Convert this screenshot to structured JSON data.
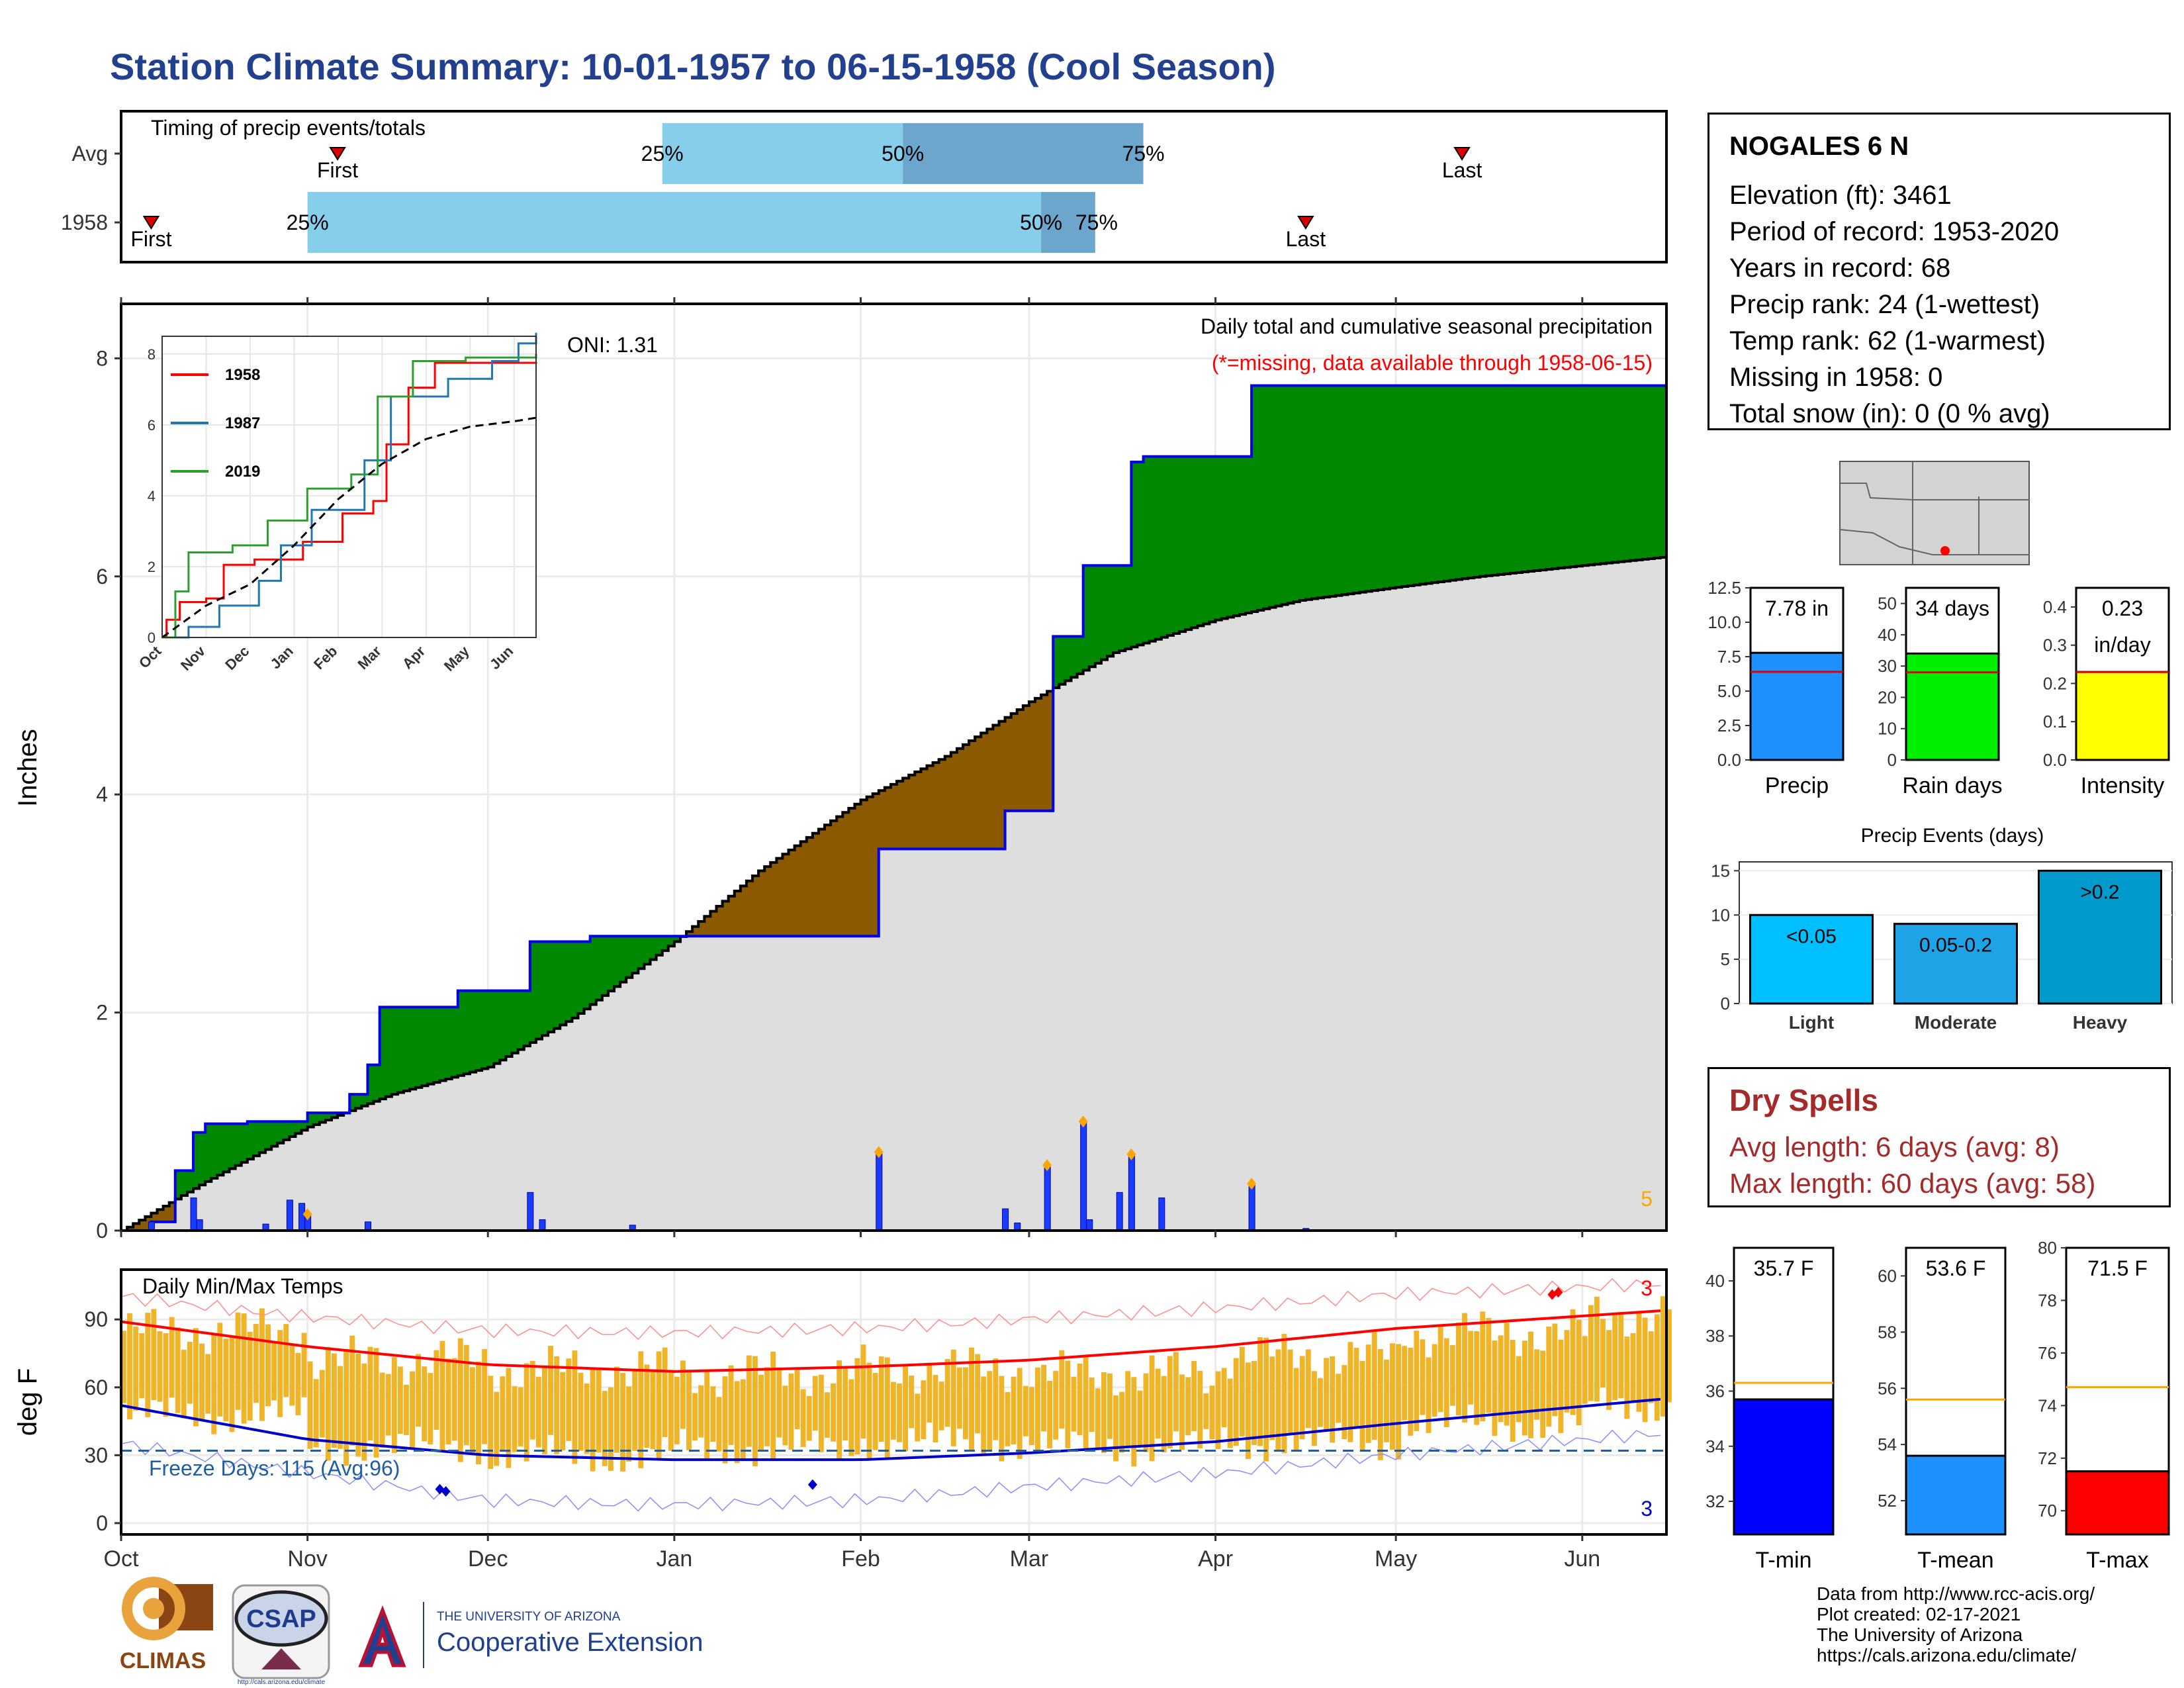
{
  "page": {
    "title": "Station Climate Summary: 10-01-1957 to 06-15-1958 (Cool Season)"
  },
  "station": {
    "name": "NOGALES 6 N",
    "lines": [
      "Elevation (ft): 3461",
      "Period of record: 1953-2020",
      "Years in record: 68",
      "Precip rank: 24 (1-wettest)",
      "Temp rank: 62 (1-warmest)",
      "Missing in 1958: 0",
      "Total snow (in): 0 (0 % avg)"
    ]
  },
  "dry_spells": {
    "title": "Dry Spells",
    "avg": "Avg length: 6 days (avg: 8)",
    "max": "Max length: 60 days (avg: 58)"
  },
  "credits": [
    "Data from http://www.rcc-acis.org/",
    "Plot created: 02-17-2021",
    "The University of Arizona",
    "https://cals.arizona.edu/climate/"
  ],
  "logos": {
    "climas": "CLIMAS",
    "csap": "CSAP",
    "csap_url": "http://cals.arizona.edu/climate",
    "ua_small": "THE UNIVERSITY OF ARIZONA",
    "ua_big": "Cooperative Extension"
  },
  "colors": {
    "title": "#23408e",
    "above_normal": "#008800",
    "below_normal": "#8b5a00",
    "normal_fill": "#dedede",
    "cumulative_line": "#0000ee",
    "daily_bar": "#1a3cff",
    "temp_bar": "#f0b429",
    "tmax_normal": "#ff0000",
    "tmin_normal": "#0000cc",
    "freeze_line": "#1f5fa0",
    "timing_light": "#87ceeb",
    "timing_dark": "#6ca6cd",
    "dry_spell": "#a52a2a"
  },
  "chart_data": [
    {
      "id": "timing",
      "type": "bar",
      "title": "Timing of precip events/totals",
      "rows": [
        {
          "label": "Avg",
          "first": "1957-11-06",
          "last": "1958-05-12",
          "p25": "1957-12-30",
          "p50": "1958-02-08",
          "p75": "1958-03-20",
          "labels": {
            "first": "First",
            "last": "Last",
            "p25": "25%",
            "p50": "50%",
            "p75": "75%"
          }
        },
        {
          "label": "1958",
          "first": "1957-10-06",
          "last": "1958-04-16",
          "p25": "1957-11-01",
          "p50": "1958-03-03",
          "p75": "1958-03-12",
          "labels": {
            "first": "First",
            "last": "Last",
            "p25": "25%",
            "p50": "50%",
            "p75": "75%"
          }
        }
      ]
    },
    {
      "id": "precip",
      "type": "area",
      "title": "Daily total and cumulative seasonal precipitation",
      "subtitle": "(*=missing, data available through 1958-06-15)",
      "ylabel": "Inches",
      "ylim": [
        0,
        8.5
      ],
      "yticks": [
        0,
        2,
        4,
        6,
        8
      ],
      "annotation": "ONI: 1.31",
      "corner_label": "5",
      "x_start": "1957-10-01",
      "x_end": "1958-06-15",
      "normal_cumulative": [
        [
          "1957-10-01",
          0.0
        ],
        [
          "1957-10-15",
          0.45
        ],
        [
          "1957-11-01",
          0.95
        ],
        [
          "1957-11-15",
          1.25
        ],
        [
          "1957-12-01",
          1.5
        ],
        [
          "1957-12-15",
          1.95
        ],
        [
          "1958-01-01",
          2.65
        ],
        [
          "1958-01-15",
          3.3
        ],
        [
          "1958-02-01",
          3.95
        ],
        [
          "1958-02-15",
          4.35
        ],
        [
          "1958-03-01",
          4.85
        ],
        [
          "1958-03-15",
          5.3
        ],
        [
          "1958-04-01",
          5.6
        ],
        [
          "1958-04-15",
          5.78
        ],
        [
          "1958-05-01",
          5.9
        ],
        [
          "1958-05-15",
          6.0
        ],
        [
          "1958-06-01",
          6.1
        ],
        [
          "1958-06-15",
          6.18
        ]
      ],
      "cumulative_1958": [
        [
          "1957-10-01",
          0.0
        ],
        [
          "1957-10-06",
          0.08
        ],
        [
          "1957-10-10",
          0.55
        ],
        [
          "1957-10-13",
          0.9
        ],
        [
          "1957-10-15",
          0.98
        ],
        [
          "1957-10-22",
          1.0
        ],
        [
          "1957-11-01",
          1.08
        ],
        [
          "1957-11-08",
          1.25
        ],
        [
          "1957-11-11",
          1.52
        ],
        [
          "1957-11-13",
          2.05
        ],
        [
          "1957-11-26",
          2.2
        ],
        [
          "1957-12-08",
          2.65
        ],
        [
          "1957-12-18",
          2.7
        ],
        [
          "1958-02-04",
          3.5
        ],
        [
          "1958-02-25",
          3.85
        ],
        [
          "1958-03-05",
          5.45
        ],
        [
          "1958-03-10",
          6.1
        ],
        [
          "1958-03-18",
          7.05
        ],
        [
          "1958-03-20",
          7.1
        ],
        [
          "1958-04-07",
          7.75
        ],
        [
          "1958-06-15",
          7.78
        ]
      ],
      "daily": [
        [
          "1957-10-06",
          0.08
        ],
        [
          "1957-10-13",
          0.3
        ],
        [
          "1957-10-14",
          0.1
        ],
        [
          "1957-10-25",
          0.06
        ],
        [
          "1957-10-29",
          0.28
        ],
        [
          "1957-10-31",
          0.25
        ],
        [
          "1957-11-01",
          0.15
        ],
        [
          "1957-11-11",
          0.08
        ],
        [
          "1957-12-08",
          0.35
        ],
        [
          "1957-12-10",
          0.1
        ],
        [
          "1957-12-25",
          0.05
        ],
        [
          "1958-02-04",
          0.72
        ],
        [
          "1958-02-25",
          0.2
        ],
        [
          "1958-02-27",
          0.07
        ],
        [
          "1958-03-04",
          0.6
        ],
        [
          "1958-03-10",
          1.0
        ],
        [
          "1958-03-11",
          0.1
        ],
        [
          "1958-03-16",
          0.35
        ],
        [
          "1958-03-18",
          0.7
        ],
        [
          "1958-03-23",
          0.3
        ],
        [
          "1958-04-07",
          0.43
        ],
        [
          "1958-04-16",
          0.02
        ]
      ],
      "inset": {
        "type": "line",
        "xticks": [
          "Oct",
          "Nov",
          "Dec",
          "Jan",
          "Feb",
          "Mar",
          "Apr",
          "May",
          "Jun"
        ],
        "yticks": [
          0,
          2,
          4,
          6,
          8
        ],
        "ylim": [
          0,
          8.5
        ],
        "series": [
          {
            "name": "1958",
            "color": "#ff0000",
            "points": [
              [
                0,
                0.0
              ],
              [
                0.1,
                0.5
              ],
              [
                0.4,
                1.0
              ],
              [
                1.0,
                1.1
              ],
              [
                1.4,
                2.05
              ],
              [
                2.1,
                2.2
              ],
              [
                3.2,
                2.7
              ],
              [
                4.1,
                3.5
              ],
              [
                4.8,
                3.85
              ],
              [
                5.1,
                5.45
              ],
              [
                5.6,
                7.05
              ],
              [
                6.2,
                7.75
              ],
              [
                8.5,
                7.78
              ]
            ]
          },
          {
            "name": "1987",
            "color": "#1f77b4",
            "points": [
              [
                0,
                0.0
              ],
              [
                0.6,
                0.3
              ],
              [
                1.3,
                0.9
              ],
              [
                2.2,
                1.6
              ],
              [
                2.7,
                2.6
              ],
              [
                3.4,
                3.6
              ],
              [
                4.6,
                5.0
              ],
              [
                5.2,
                6.8
              ],
              [
                6.5,
                7.3
              ],
              [
                7.5,
                7.8
              ],
              [
                8.1,
                8.3
              ],
              [
                8.5,
                8.6
              ]
            ]
          },
          {
            "name": "2019",
            "color": "#2ca02c",
            "points": [
              [
                0,
                0.0
              ],
              [
                0.3,
                1.3
              ],
              [
                0.6,
                2.4
              ],
              [
                1.6,
                2.6
              ],
              [
                2.4,
                3.3
              ],
              [
                3.3,
                4.2
              ],
              [
                4.3,
                4.6
              ],
              [
                4.9,
                6.8
              ],
              [
                5.7,
                7.8
              ],
              [
                6.9,
                7.9
              ],
              [
                8.5,
                8.0
              ]
            ]
          },
          {
            "name": "Avg",
            "color": "#000000",
            "dashed": true,
            "points": [
              [
                0,
                0.0
              ],
              [
                1,
                0.9
              ],
              [
                2,
                1.5
              ],
              [
                3,
                2.6
              ],
              [
                4,
                3.9
              ],
              [
                5,
                4.9
              ],
              [
                6,
                5.6
              ],
              [
                7,
                5.95
              ],
              [
                8,
                6.1
              ],
              [
                8.5,
                6.2
              ]
            ]
          }
        ]
      }
    },
    {
      "id": "temps",
      "type": "bar",
      "title": "Daily Min/Max Temps",
      "ylabel": "deg F",
      "ylim": [
        -5,
        112
      ],
      "yticks": [
        0,
        30,
        60,
        90
      ],
      "xticks": [
        "Oct",
        "Nov",
        "Dec",
        "Jan",
        "Feb",
        "Mar",
        "Apr",
        "May",
        "Jun"
      ],
      "freeze_label": "Freeze Days: 115 (Avg:96)",
      "freeze_threshold": 32,
      "record_high_count": "3",
      "record_low_count": "3",
      "tmax_normal": [
        [
          "1957-10-01",
          89
        ],
        [
          "1957-11-01",
          78
        ],
        [
          "1957-12-01",
          70
        ],
        [
          "1958-01-01",
          67
        ],
        [
          "1958-02-01",
          69
        ],
        [
          "1958-03-01",
          72
        ],
        [
          "1958-04-01",
          78
        ],
        [
          "1958-05-01",
          86
        ],
        [
          "1958-06-15",
          94
        ]
      ],
      "tmin_normal": [
        [
          "1957-10-01",
          52
        ],
        [
          "1957-11-01",
          37
        ],
        [
          "1957-12-01",
          30
        ],
        [
          "1958-01-01",
          28
        ],
        [
          "1958-02-01",
          28
        ],
        [
          "1958-03-01",
          31
        ],
        [
          "1958-04-01",
          36
        ],
        [
          "1958-05-01",
          44
        ],
        [
          "1958-06-15",
          55
        ]
      ],
      "record_max": [
        [
          "1957-10-01",
          100
        ],
        [
          "1957-11-01",
          91
        ],
        [
          "1957-12-01",
          85
        ],
        [
          "1958-01-01",
          84
        ],
        [
          "1958-02-01",
          86
        ],
        [
          "1958-03-01",
          90
        ],
        [
          "1958-04-01",
          95
        ],
        [
          "1958-05-01",
          101
        ],
        [
          "1958-06-15",
          106
        ]
      ],
      "record_min": [
        [
          "1957-10-01",
          35
        ],
        [
          "1957-11-01",
          22
        ],
        [
          "1957-12-01",
          10
        ],
        [
          "1958-01-01",
          8
        ],
        [
          "1958-02-01",
          10
        ],
        [
          "1958-03-01",
          16
        ],
        [
          "1958-04-01",
          22
        ],
        [
          "1958-05-01",
          30
        ],
        [
          "1958-06-15",
          40
        ]
      ],
      "observed_monthly": [
        {
          "month": "Oct",
          "tmin": 48,
          "tmax": 85
        },
        {
          "month": "Nov",
          "tmin": 34,
          "tmax": 72
        },
        {
          "month": "Dec",
          "tmin": 30,
          "tmax": 68
        },
        {
          "month": "Jan",
          "tmin": 33,
          "tmax": 66
        },
        {
          "month": "Feb",
          "tmin": 36,
          "tmax": 68
        },
        {
          "month": "Mar",
          "tmin": 34,
          "tmax": 66
        },
        {
          "month": "Apr",
          "tmin": 36,
          "tmax": 74
        },
        {
          "month": "May",
          "tmin": 44,
          "tmax": 84
        },
        {
          "month": "Jun",
          "tmin": 52,
          "tmax": 92
        }
      ]
    },
    {
      "id": "precip_bars",
      "type": "bar",
      "panels": [
        {
          "label": "Precip",
          "value": 7.78,
          "normal": 6.4,
          "ylim": [
            0,
            12.5
          ],
          "yticks": [
            "0.0",
            "2.5",
            "5.0",
            "7.5",
            "10.0",
            "12.5"
          ],
          "value_label": "7.78 in",
          "color": "#1e90ff"
        },
        {
          "label": "Rain days",
          "value": 34,
          "normal": 28,
          "ylim": [
            0,
            55
          ],
          "yticks": [
            "0",
            "10",
            "20",
            "30",
            "40",
            "50"
          ],
          "value_label": "34 days",
          "color": "#00ee00"
        },
        {
          "label": "Intensity",
          "value": 0.23,
          "normal": 0.23,
          "ylim": [
            0,
            0.45
          ],
          "yticks": [
            "0.0",
            "0.1",
            "0.2",
            "0.3",
            "0.4"
          ],
          "value_label": "0.23",
          "value_label2": "in/day",
          "color": "#ffff00"
        }
      ]
    },
    {
      "id": "precip_events",
      "type": "bar",
      "title": "Precip Events (days)",
      "categories": [
        "Light",
        "Moderate",
        "Heavy"
      ],
      "values": [
        10,
        9,
        15
      ],
      "bar_labels": [
        "<0.05",
        "0.05-0.2",
        ">0.2"
      ],
      "colors": [
        "#00bfff",
        "#1ea4e6",
        "#009acd"
      ],
      "ylim": [
        0,
        16
      ],
      "yticks": [
        "0",
        "5",
        "10",
        "15"
      ]
    },
    {
      "id": "temp_bars",
      "type": "bar",
      "panels": [
        {
          "label": "T-min",
          "value": 35.7,
          "normal": 36.3,
          "ylim": [
            30.8,
            41.2
          ],
          "yticks": [
            "32",
            "34",
            "36",
            "38",
            "40"
          ],
          "value_label": "35.7 F",
          "color": "#0000ff"
        },
        {
          "label": "T-mean",
          "value": 53.6,
          "normal": 55.6,
          "ylim": [
            50.8,
            61.0
          ],
          "yticks": [
            "52",
            "54",
            "56",
            "58",
            "60"
          ],
          "value_label": "53.6 F",
          "color": "#1e90ff"
        },
        {
          "label": "T-max",
          "value": 71.5,
          "normal": 74.7,
          "ylim": [
            69.1,
            80.0
          ],
          "yticks": [
            "70",
            "72",
            "74",
            "76",
            "78",
            "80"
          ],
          "value_label": "71.5 F",
          "color": "#ff0000"
        }
      ]
    }
  ]
}
